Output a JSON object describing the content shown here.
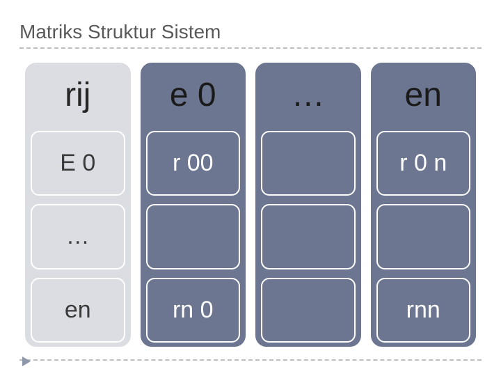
{
  "title": "Matriks Struktur Sistem",
  "colors": {
    "title_text": "#595959",
    "dashed_line": "#bfbfbf",
    "light_col_bg": "#dcdde2",
    "dark_col_bg": "#6c7691",
    "cell_border": "#ffffff",
    "dark_text": "#262626",
    "light_text": "#ffffff",
    "marker": "#8f97ab"
  },
  "table": {
    "type": "infographic-matrix",
    "columns": [
      {
        "header": "rij",
        "variant": "light",
        "cells": [
          "E 0",
          "…",
          "en"
        ]
      },
      {
        "header": "e 0",
        "variant": "dark",
        "cells": [
          "r 00",
          "",
          "rn 0"
        ]
      },
      {
        "header": "…",
        "variant": "dark",
        "cells": [
          "",
          "",
          ""
        ]
      },
      {
        "header": "en",
        "variant": "dark",
        "cells": [
          "r 0 n",
          "",
          "rnn"
        ]
      }
    ],
    "header_fontsize": 48,
    "cell_fontsize": 34,
    "col_radius": 18,
    "cell_radius": 12
  }
}
